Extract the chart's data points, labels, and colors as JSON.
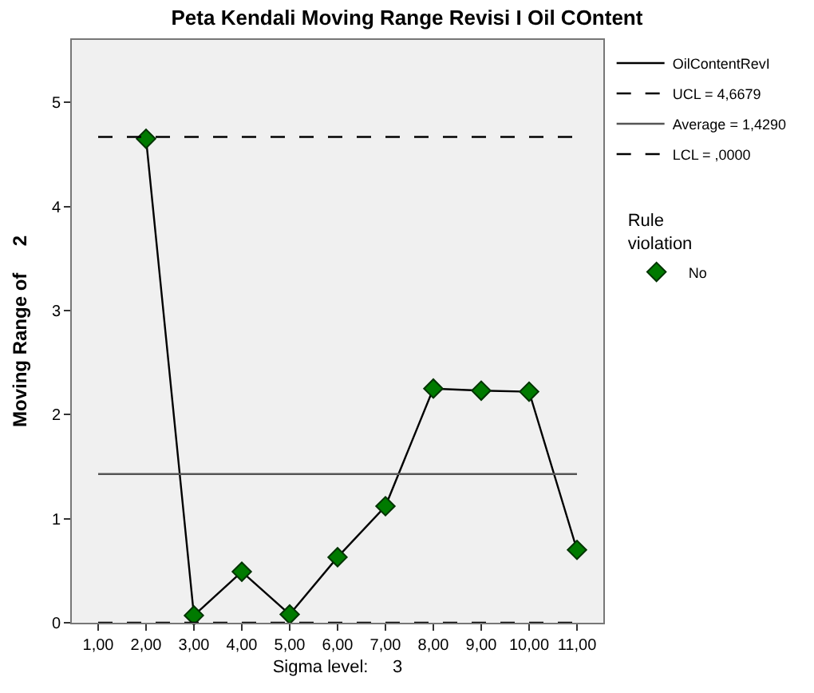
{
  "chart_data": {
    "type": "line",
    "title": "Peta Kendali Moving Range Revisi I Oil COntent",
    "xlabel": "Sigma level:     3",
    "ylabel": "Moving Range of     2",
    "legend_title": "Rule violation",
    "x": [
      2,
      3,
      4,
      5,
      6,
      7,
      8,
      9,
      10,
      11
    ],
    "series": [
      {
        "name": "OilContentRevI",
        "color": "#000000",
        "marker": "none",
        "line_style": "solid",
        "values": [
          4.65,
          0.07,
          0.49,
          0.08,
          0.63,
          1.12,
          2.25,
          2.23,
          2.22,
          0.7
        ]
      },
      {
        "name": "No",
        "type": "scatter",
        "color": "#007a00",
        "marker": "diamond",
        "values": [
          4.65,
          0.07,
          0.49,
          0.08,
          0.63,
          1.12,
          2.25,
          2.23,
          2.22,
          0.7
        ]
      }
    ],
    "ref_lines": [
      {
        "axis": "y",
        "value": 4.6679,
        "label": "UCL = 4,6679",
        "color": "#000000",
        "line_style": "dashed"
      },
      {
        "axis": "y",
        "value": 1.429,
        "label": "Average = 1,4290",
        "color": "#555555",
        "line_style": "solid"
      },
      {
        "axis": "y",
        "value": 0,
        "label": "LCL = ,0000",
        "color": "#000000",
        "line_style": "dashed"
      }
    ],
    "xlim": [
      0.45,
      11.55
    ],
    "xticks": [
      {
        "value": 1,
        "label": "1,00"
      },
      {
        "value": 2,
        "label": "2,00"
      },
      {
        "value": 3,
        "label": "3,00"
      },
      {
        "value": 4,
        "label": "4,00"
      },
      {
        "value": 5,
        "label": "5,00"
      },
      {
        "value": 6,
        "label": "6,00"
      },
      {
        "value": 7,
        "label": "7,00"
      },
      {
        "value": 8,
        "label": "8,00"
      },
      {
        "value": 9,
        "label": "9,00"
      },
      {
        "value": 10,
        "label": "10,00"
      },
      {
        "value": 11,
        "label": "11,00"
      }
    ],
    "ylim": [
      0,
      5.6
    ],
    "yticks": [
      0,
      1,
      2,
      3,
      4,
      5
    ],
    "grid": false,
    "legend": "right"
  }
}
